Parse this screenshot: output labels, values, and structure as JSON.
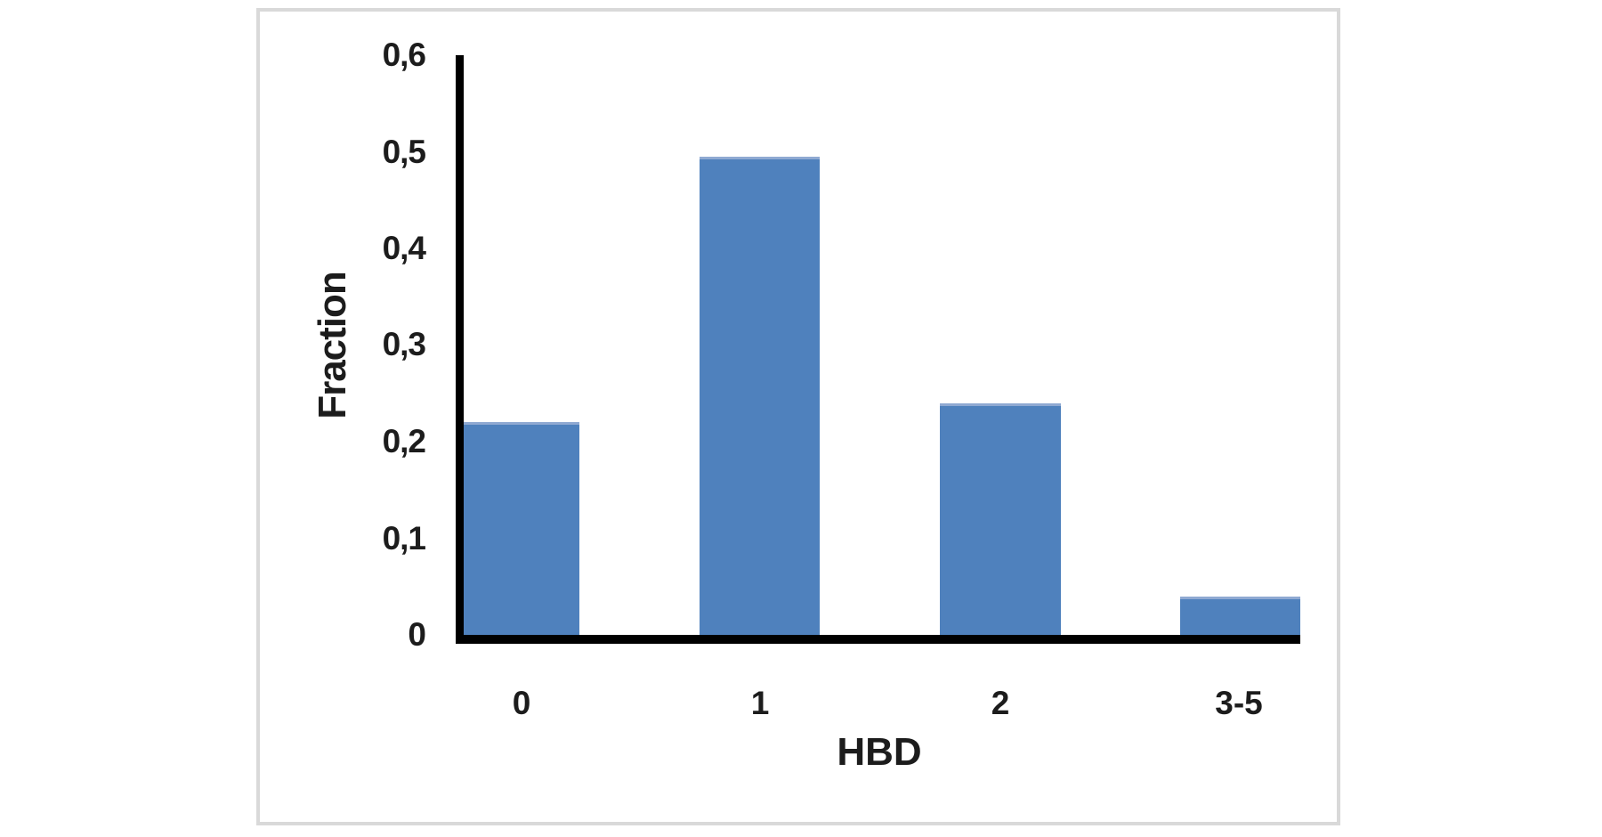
{
  "page": {
    "background_color": "#ffffff",
    "frame_border_color": "#d9d9d9"
  },
  "chart_data": {
    "type": "bar",
    "title": "",
    "categories": [
      "0",
      "1",
      "2",
      "3-5"
    ],
    "values": [
      0.22,
      0.495,
      0.24,
      0.04
    ],
    "xlabel": "HBD",
    "ylabel": "Fraction",
    "ylim": [
      0,
      0.6
    ],
    "ytick_interval": 0.1,
    "ytick_labels": [
      "0",
      "0,1",
      "0,2",
      "0,3",
      "0,4",
      "0,5",
      "0,6"
    ],
    "decimal_separator": ",",
    "grid": false,
    "legend": "none",
    "bar_color": "#4f81bd",
    "bar_top_edge_color": "#8fa9d2",
    "axis_color": "#000000",
    "text_color": "#1c1c1c"
  }
}
